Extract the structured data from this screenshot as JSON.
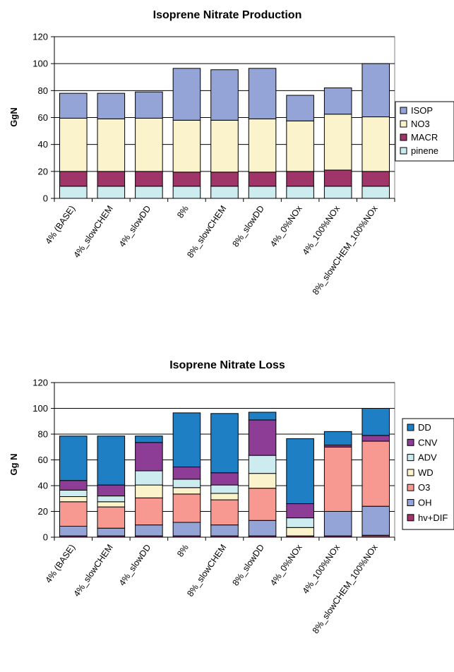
{
  "chart_data": [
    {
      "type": "bar",
      "stacked": true,
      "title": "Isoprene Nitrate Production",
      "xlabel": "",
      "ylabel": "GgN",
      "ylim": [
        0,
        120
      ],
      "yticks": [
        0,
        20,
        40,
        60,
        80,
        100,
        120
      ],
      "grid": true,
      "legend_position": "right",
      "categories": [
        "4% (BASE)",
        "4%_slowCHEM",
        "4%_slowDD",
        "8%",
        "8%_slowCHEM",
        "8%_slowDD",
        "4%_0%NOx",
        "4%_100%NOx",
        "8%_slowCHEM_100%NOx"
      ],
      "series": [
        {
          "name": "pinene",
          "color": "#ccecf0",
          "values": [
            9,
            9,
            9,
            9,
            9,
            9,
            9,
            9,
            9
          ]
        },
        {
          "name": "MACR",
          "color": "#a0356a",
          "values": [
            11,
            11,
            11,
            10.5,
            10.5,
            10.5,
            11,
            12,
            11
          ]
        },
        {
          "name": "NO3",
          "color": "#faf3cc",
          "values": [
            39.5,
            39,
            39.5,
            38.5,
            38.5,
            39.5,
            37.5,
            41.5,
            40.5
          ]
        },
        {
          "name": "ISOP",
          "color": "#95a4d6",
          "values": [
            18.5,
            19,
            19.5,
            38.5,
            37.5,
            37.5,
            19,
            19.5,
            39.5
          ]
        }
      ],
      "legend_order": [
        "ISOP",
        "NO3",
        "MACR",
        "pinene"
      ]
    },
    {
      "type": "bar",
      "stacked": true,
      "title": "Isoprene Nitrate Loss",
      "xlabel": "",
      "ylabel": "Gg N",
      "ylim": [
        0,
        120
      ],
      "yticks": [
        0,
        20,
        40,
        60,
        80,
        100,
        120
      ],
      "grid": true,
      "legend_position": "right",
      "categories": [
        "4% (BASE)",
        "4%_slowCHEM",
        "4%_slowDD",
        "8%",
        "8%_slowCHEM",
        "8%_slowDD",
        "4%_0%NOx",
        "4%_100%NOx",
        "8%_slowCHEM_100%NOx"
      ],
      "series": [
        {
          "name": "hv+DIF",
          "color": "#a0356a",
          "values": [
            1,
            1,
            1,
            1,
            1,
            1,
            1,
            1,
            1.5
          ]
        },
        {
          "name": "OH",
          "color": "#95a4d6",
          "values": [
            7.5,
            6,
            8.5,
            10.5,
            8.5,
            12,
            0,
            19,
            22.5
          ]
        },
        {
          "name": "O3",
          "color": "#f79990",
          "values": [
            19,
            16.5,
            21,
            22,
            19.5,
            25,
            0,
            50,
            50.5
          ]
        },
        {
          "name": "WD",
          "color": "#faf3cc",
          "values": [
            4,
            4,
            10,
            5,
            5,
            11.5,
            6.5,
            0,
            0
          ]
        },
        {
          "name": "ADV",
          "color": "#ccecf0",
          "values": [
            5,
            4.5,
            11,
            6.5,
            6.5,
            14,
            7.5,
            0,
            0
          ]
        },
        {
          "name": "CNV",
          "color": "#8e3d96",
          "values": [
            7.5,
            8.5,
            22,
            9.5,
            9.5,
            27.5,
            11,
            1.5,
            4.5
          ]
        },
        {
          "name": "DD",
          "color": "#1e7fc4",
          "values": [
            34.5,
            38,
            5,
            42,
            46,
            6,
            50.5,
            10.5,
            21
          ]
        }
      ],
      "legend_order": [
        "DD",
        "CNV",
        "ADV",
        "WD",
        "O3",
        "OH",
        "hv+DIF"
      ]
    }
  ]
}
